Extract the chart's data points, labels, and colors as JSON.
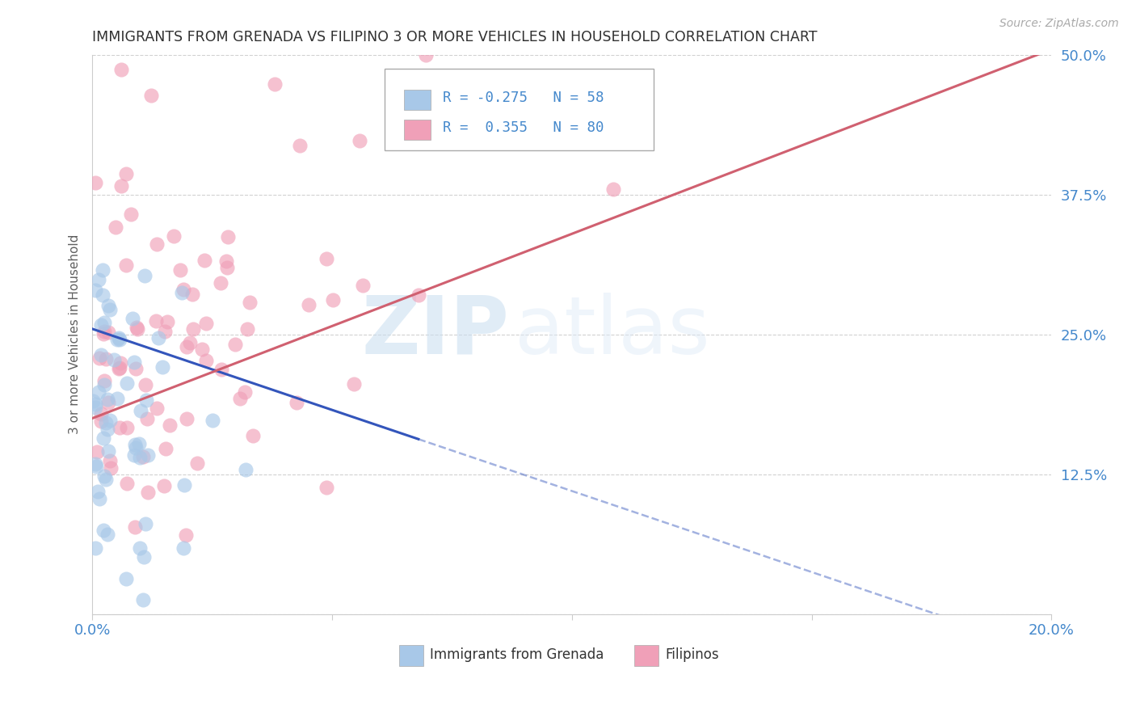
{
  "title": "IMMIGRANTS FROM GRENADA VS FILIPINO 3 OR MORE VEHICLES IN HOUSEHOLD CORRELATION CHART",
  "source": "Source: ZipAtlas.com",
  "ylabel": "3 or more Vehicles in Household",
  "x_min": 0.0,
  "x_max": 0.2,
  "y_min": 0.0,
  "y_max": 0.5,
  "grenada_R": -0.275,
  "grenada_N": 58,
  "filipino_R": 0.355,
  "filipino_N": 80,
  "grenada_color": "#a8c8e8",
  "filipino_color": "#f0a0b8",
  "grenada_line_color": "#3355bb",
  "filipino_line_color": "#d06070",
  "watermark_zip": "ZIP",
  "watermark_atlas": "atlas",
  "background_color": "#ffffff",
  "grid_color": "#cccccc",
  "title_color": "#303030",
  "axis_tick_color": "#4488cc",
  "ylabel_color": "#606060",
  "legend_r_color": "#4488cc",
  "grenada_line_intercept": 0.255,
  "grenada_line_slope": -1.45,
  "grenada_line_solid_end": 0.068,
  "filipino_line_intercept": 0.175,
  "filipino_line_slope": 1.65
}
